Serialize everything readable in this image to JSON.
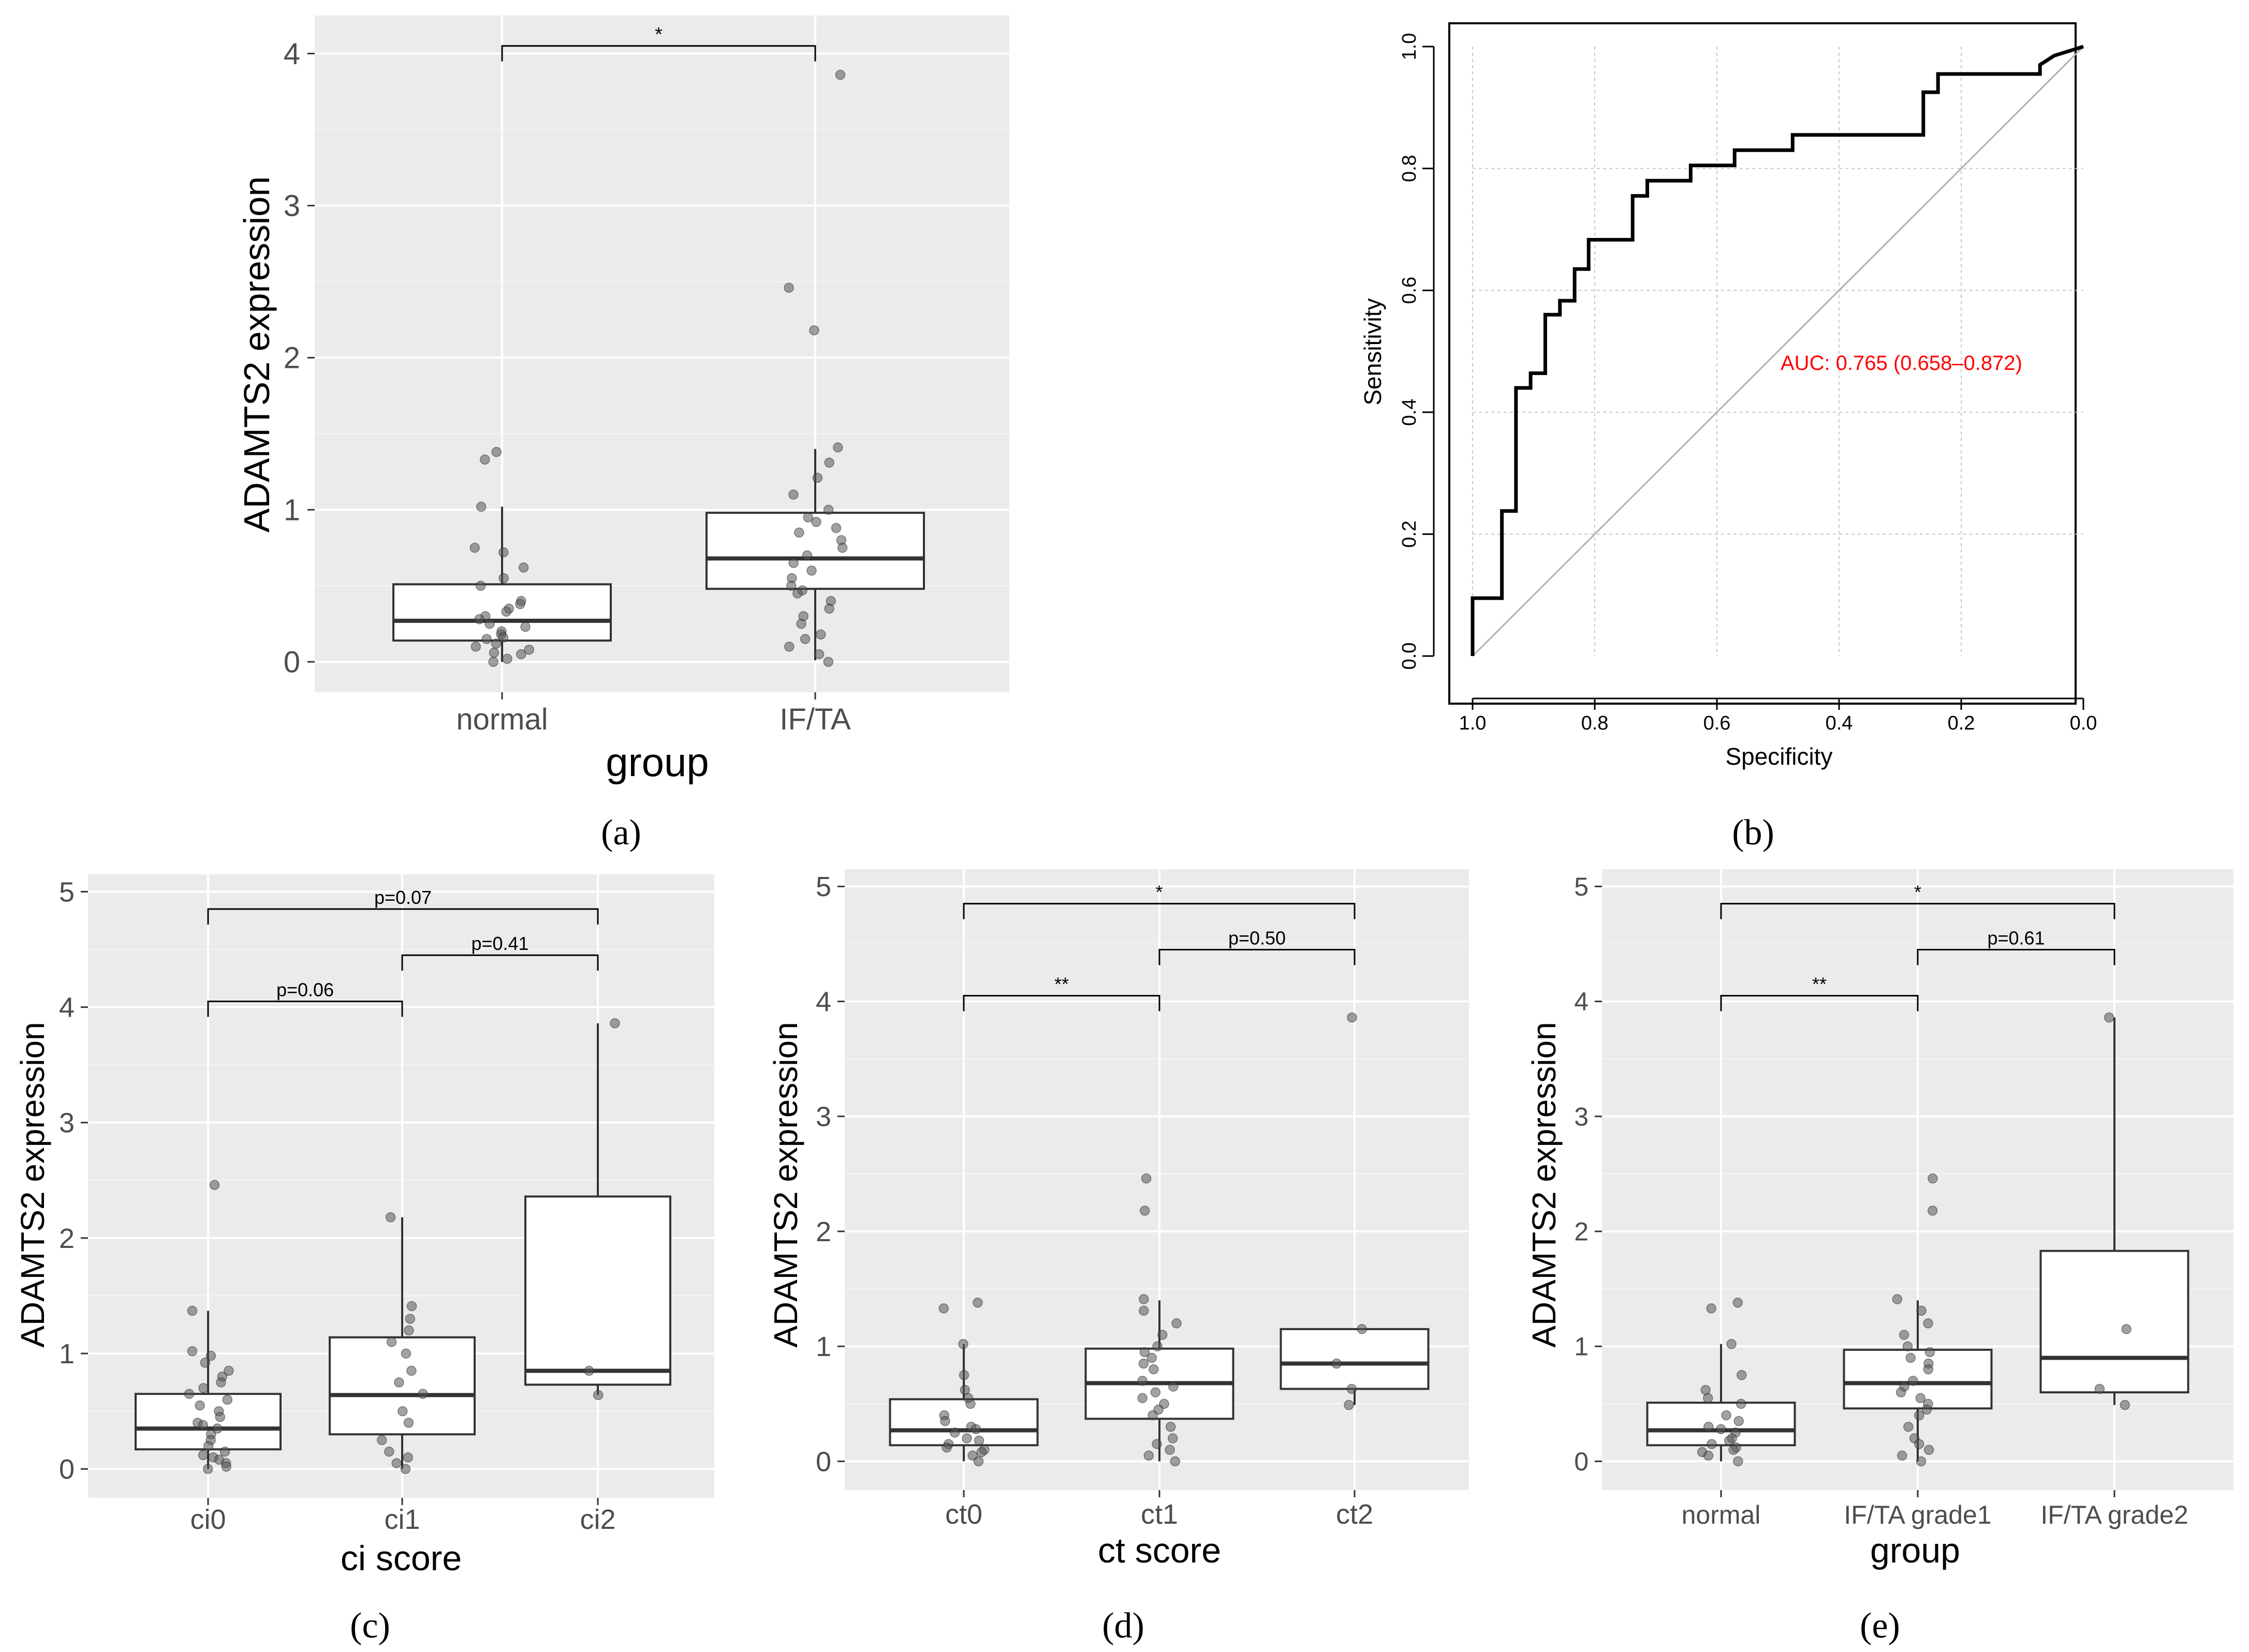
{
  "chart_data": [
    {
      "panel": "(a)",
      "type": "box",
      "xlabel": "group",
      "ylabel": "ADAMTS2 expression",
      "ylim": [
        -0.2,
        4.25
      ],
      "yticks": [
        0,
        1,
        2,
        3,
        4
      ],
      "categories": [
        "normal",
        "IF/TA"
      ],
      "boxes": [
        {
          "q1": 0.14,
          "median": 0.27,
          "q3": 0.51,
          "whisker_low": 0.0,
          "whisker_high": 1.02
        },
        {
          "q1": 0.48,
          "median": 0.68,
          "q3": 0.98,
          "whisker_low": 0.01,
          "whisker_high": 1.4
        }
      ],
      "points": [
        [
          1.38,
          1.33,
          1.02,
          0.75,
          0.72,
          0.62,
          0.55,
          0.5,
          0.4,
          0.38,
          0.35,
          0.33,
          0.3,
          0.28,
          0.25,
          0.23,
          0.2,
          0.18,
          0.16,
          0.15,
          0.12,
          0.1,
          0.08,
          0.06,
          0.05,
          0.02,
          0.0
        ],
        [
          3.86,
          2.46,
          2.18,
          1.41,
          1.31,
          1.21,
          1.1,
          1.0,
          0.95,
          0.92,
          0.88,
          0.85,
          0.8,
          0.75,
          0.7,
          0.65,
          0.6,
          0.55,
          0.5,
          0.47,
          0.45,
          0.4,
          0.35,
          0.3,
          0.25,
          0.18,
          0.15,
          0.1,
          0.05,
          0.0
        ]
      ],
      "brackets": [
        {
          "from": 0,
          "to": 1,
          "y": 4.05,
          "label": "*"
        }
      ]
    },
    {
      "panel": "(b)",
      "type": "line",
      "xlabel": "Specificity",
      "ylabel": "Sensitivity",
      "xlim": [
        1.0,
        0.0
      ],
      "ylim": [
        0.0,
        1.0
      ],
      "xticks": [
        "1.0",
        "0.8",
        "0.6",
        "0.4",
        "0.2",
        "0.0"
      ],
      "yticks": [
        "0.0",
        "0.2",
        "0.4",
        "0.6",
        "0.8",
        "1.0"
      ],
      "annotation": "AUC: 0.765 (0.658–0.872)",
      "reference_line": [
        [
          1.0,
          0.0
        ],
        [
          0.0,
          1.0
        ]
      ],
      "roc": [
        [
          1.0,
          0.0
        ],
        [
          1.0,
          0.095
        ],
        [
          0.952,
          0.095
        ],
        [
          0.952,
          0.238
        ],
        [
          0.929,
          0.238
        ],
        [
          0.929,
          0.44
        ],
        [
          0.905,
          0.44
        ],
        [
          0.905,
          0.464
        ],
        [
          0.881,
          0.464
        ],
        [
          0.881,
          0.56
        ],
        [
          0.857,
          0.56
        ],
        [
          0.857,
          0.583
        ],
        [
          0.833,
          0.583
        ],
        [
          0.833,
          0.635
        ],
        [
          0.81,
          0.635
        ],
        [
          0.81,
          0.683
        ],
        [
          0.738,
          0.683
        ],
        [
          0.738,
          0.755
        ],
        [
          0.714,
          0.755
        ],
        [
          0.714,
          0.78
        ],
        [
          0.643,
          0.78
        ],
        [
          0.643,
          0.805
        ],
        [
          0.571,
          0.805
        ],
        [
          0.571,
          0.83
        ],
        [
          0.476,
          0.83
        ],
        [
          0.476,
          0.855
        ],
        [
          0.262,
          0.855
        ],
        [
          0.262,
          0.925
        ],
        [
          0.238,
          0.925
        ],
        [
          0.238,
          0.955
        ],
        [
          0.071,
          0.955
        ],
        [
          0.071,
          0.97
        ],
        [
          0.048,
          0.985
        ],
        [
          0.0,
          1.0
        ]
      ]
    },
    {
      "panel": "(c)",
      "type": "box",
      "xlabel": "ci score",
      "ylabel": "ADAMTS2 expression",
      "ylim": [
        -0.25,
        5.15
      ],
      "yticks": [
        0,
        1,
        2,
        3,
        4,
        5
      ],
      "categories": [
        "ci0",
        "ci1",
        "ci2"
      ],
      "boxes": [
        {
          "q1": 0.17,
          "median": 0.35,
          "q3": 0.65,
          "whisker_low": 0.0,
          "whisker_high": 1.37
        },
        {
          "q1": 0.3,
          "median": 0.64,
          "q3": 1.14,
          "whisker_low": 0.0,
          "whisker_high": 2.18
        },
        {
          "q1": 0.73,
          "median": 0.85,
          "q3": 2.36,
          "whisker_low": 0.64,
          "whisker_high": 3.86
        }
      ],
      "points": [
        [
          2.46,
          1.37,
          1.02,
          0.98,
          0.92,
          0.85,
          0.8,
          0.75,
          0.7,
          0.65,
          0.6,
          0.55,
          0.5,
          0.45,
          0.4,
          0.38,
          0.35,
          0.3,
          0.25,
          0.2,
          0.15,
          0.12,
          0.1,
          0.08,
          0.05,
          0.02,
          0.0
        ],
        [
          2.18,
          1.41,
          1.3,
          1.2,
          1.1,
          1.0,
          0.85,
          0.75,
          0.65,
          0.5,
          0.4,
          0.25,
          0.15,
          0.1,
          0.05,
          0.0
        ],
        [
          3.86,
          0.85,
          0.64
        ]
      ],
      "brackets": [
        {
          "from": 0,
          "to": 1,
          "y": 4.05,
          "label": "p=0.06"
        },
        {
          "from": 1,
          "to": 2,
          "y": 4.45,
          "label": "p=0.41"
        },
        {
          "from": 0,
          "to": 2,
          "y": 4.85,
          "label": "p=0.07"
        }
      ]
    },
    {
      "panel": "(d)",
      "type": "box",
      "xlabel": "ct score",
      "ylabel": "ADAMTS2 expression",
      "ylim": [
        -0.25,
        5.15
      ],
      "yticks": [
        0,
        1,
        2,
        3,
        4,
        5
      ],
      "categories": [
        "ct0",
        "ct1",
        "ct2"
      ],
      "boxes": [
        {
          "q1": 0.14,
          "median": 0.27,
          "q3": 0.54,
          "whisker_low": 0.0,
          "whisker_high": 1.02
        },
        {
          "q1": 0.37,
          "median": 0.68,
          "q3": 0.98,
          "whisker_low": 0.0,
          "whisker_high": 1.4
        },
        {
          "q1": 0.63,
          "median": 0.85,
          "q3": 1.15,
          "whisker_low": 0.49,
          "whisker_high": 1.15
        }
      ],
      "points": [
        [
          1.38,
          1.33,
          1.02,
          0.75,
          0.62,
          0.55,
          0.5,
          0.4,
          0.35,
          0.3,
          0.28,
          0.25,
          0.2,
          0.18,
          0.15,
          0.12,
          0.1,
          0.08,
          0.05,
          0.0
        ],
        [
          2.46,
          2.18,
          1.41,
          1.31,
          1.2,
          1.1,
          1.0,
          0.95,
          0.9,
          0.85,
          0.8,
          0.7,
          0.65,
          0.6,
          0.55,
          0.5,
          0.45,
          0.4,
          0.3,
          0.2,
          0.15,
          0.1,
          0.05,
          0.0
        ],
        [
          3.86,
          1.15,
          0.85,
          0.63,
          0.49
        ]
      ],
      "brackets": [
        {
          "from": 0,
          "to": 1,
          "y": 4.05,
          "label": "**"
        },
        {
          "from": 1,
          "to": 2,
          "y": 4.45,
          "label": "p=0.50"
        },
        {
          "from": 0,
          "to": 2,
          "y": 4.85,
          "label": "*"
        }
      ]
    },
    {
      "panel": "(e)",
      "type": "box",
      "xlabel": "group",
      "ylabel": "ADAMTS2 expression",
      "ylim": [
        -0.25,
        5.15
      ],
      "yticks": [
        0,
        1,
        2,
        3,
        4,
        5
      ],
      "categories": [
        "normal",
        "IF/TA grade1",
        "IF/TA grade2"
      ],
      "boxes": [
        {
          "q1": 0.14,
          "median": 0.27,
          "q3": 0.51,
          "whisker_low": 0.0,
          "whisker_high": 1.02
        },
        {
          "q1": 0.46,
          "median": 0.68,
          "q3": 0.97,
          "whisker_low": 0.0,
          "whisker_high": 1.4
        },
        {
          "q1": 0.6,
          "median": 0.9,
          "q3": 1.83,
          "whisker_low": 0.49,
          "whisker_high": 3.86
        }
      ],
      "points": [
        [
          1.38,
          1.33,
          1.02,
          0.75,
          0.62,
          0.55,
          0.5,
          0.4,
          0.35,
          0.3,
          0.28,
          0.25,
          0.2,
          0.18,
          0.15,
          0.12,
          0.1,
          0.08,
          0.05,
          0.0
        ],
        [
          2.46,
          2.18,
          1.41,
          1.31,
          1.2,
          1.1,
          1.0,
          0.95,
          0.9,
          0.85,
          0.8,
          0.7,
          0.65,
          0.6,
          0.55,
          0.5,
          0.45,
          0.4,
          0.3,
          0.2,
          0.15,
          0.1,
          0.05,
          0.0
        ],
        [
          3.86,
          1.15,
          0.63,
          0.49
        ]
      ],
      "brackets": [
        {
          "from": 0,
          "to": 1,
          "y": 4.05,
          "label": "**"
        },
        {
          "from": 1,
          "to": 2,
          "y": 4.45,
          "label": "p=0.61"
        },
        {
          "from": 0,
          "to": 2,
          "y": 4.85,
          "label": "*"
        }
      ]
    }
  ],
  "colors": {
    "panel_bg": "#ebebeb",
    "grid_major": "#ffffff",
    "point": "#555555",
    "roc_line": "#000000",
    "reference": "#b0b0b0",
    "auc_text": "#ff0000",
    "roc_grid": "#c8c8c8"
  }
}
